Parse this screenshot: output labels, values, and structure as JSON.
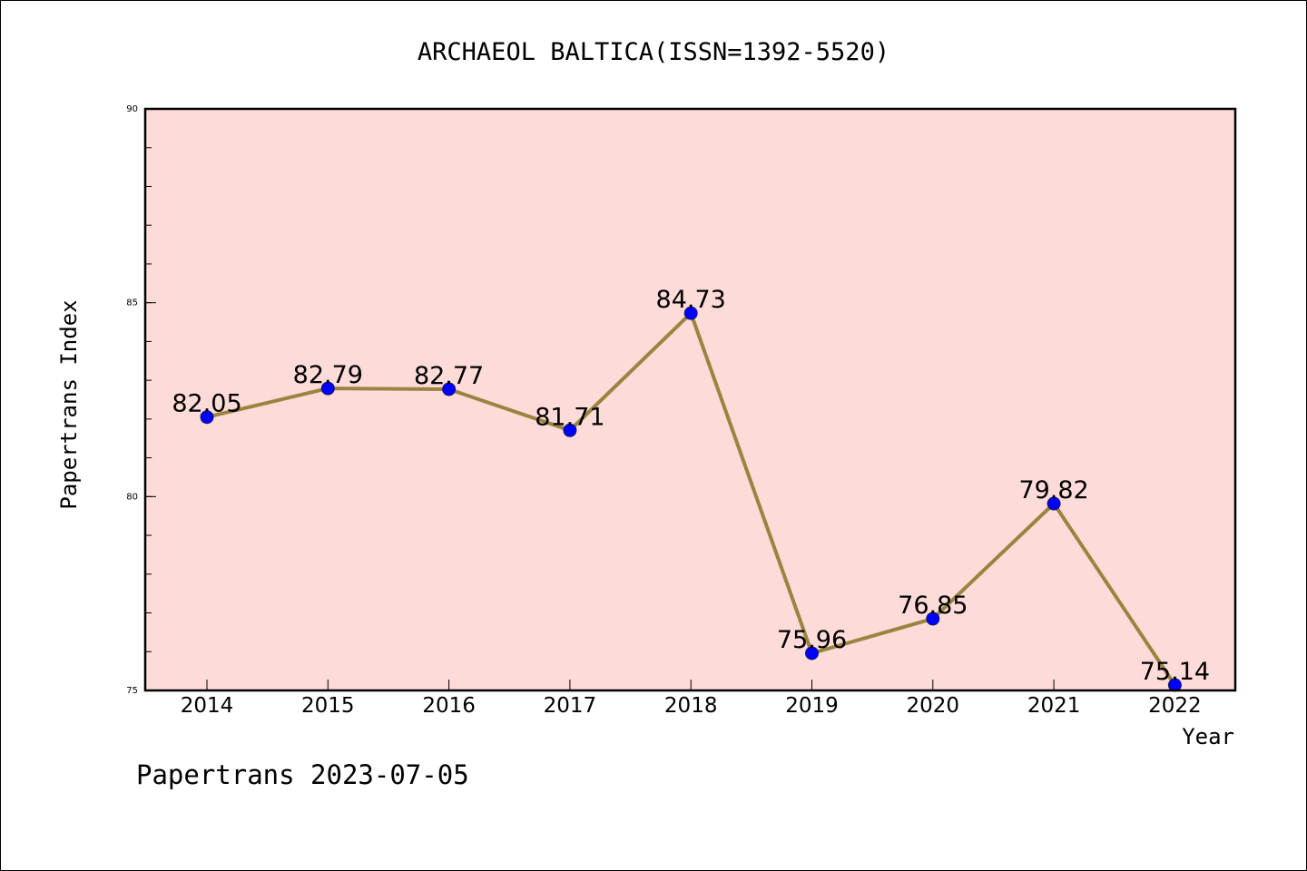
{
  "chart_data": {
    "type": "line",
    "title": "ARCHAEOL BALTICA(ISSN=1392-5520)",
    "xlabel": "Year",
    "ylabel": "Papertrans Index",
    "categories": [
      "2014",
      "2015",
      "2016",
      "2017",
      "2018",
      "2019",
      "2020",
      "2021",
      "2022"
    ],
    "series": [
      {
        "values": [
          82.05,
          82.79,
          82.77,
          81.71,
          84.73,
          75.96,
          76.85,
          79.82,
          75.14
        ],
        "labels": [
          "82.05",
          "82.79",
          "82.77",
          "81.71",
          "84.73",
          "75.96",
          "76.85",
          "79.82",
          "75.14"
        ]
      }
    ],
    "ylim": [
      75,
      90
    ],
    "yticks": [
      "75",
      "80",
      "85",
      "90"
    ],
    "grid": false,
    "colors": {
      "plot_background": "#fddbd8",
      "line": "#9a8440",
      "marker": "#0000ff"
    }
  },
  "footer": "Papertrans 2023-07-05"
}
